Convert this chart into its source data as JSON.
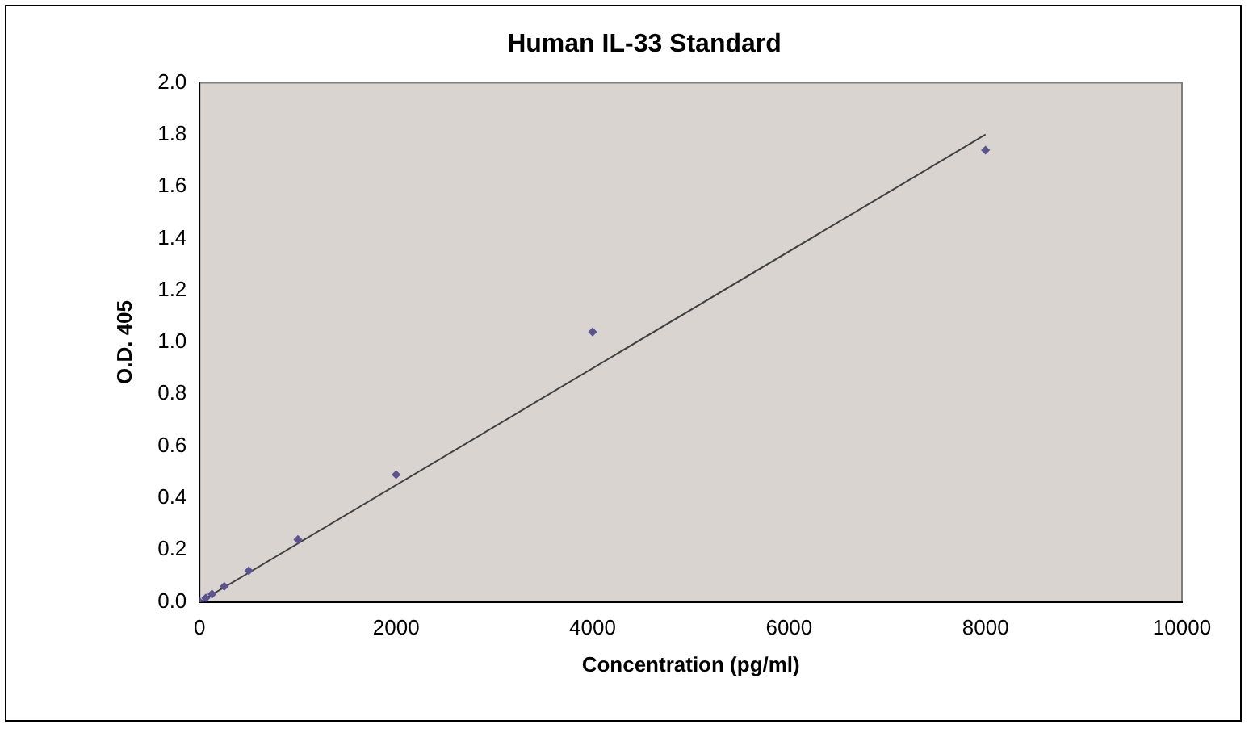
{
  "chart_data": {
    "type": "scatter",
    "title": "Human IL-33 Standard",
    "xlabel": "Concentration (pg/ml)",
    "ylabel": "O.D. 405",
    "x": [
      0,
      62.5,
      125,
      250,
      500,
      1000,
      2000,
      4000,
      8000
    ],
    "series": [
      {
        "color": "#5b5290",
        "marker": "diamond",
        "values": [
          0,
          0.015,
          0.03,
          0.06,
          0.12,
          0.24,
          0.49,
          1.04,
          1.74
        ]
      },
      {
        "type": "line",
        "color": "#404040",
        "x": [
          0,
          8000
        ],
        "values": [
          0,
          1.8
        ],
        "marker": "none"
      }
    ],
    "xlim": [
      0,
      10000
    ],
    "xticks": [
      0,
      2000,
      4000,
      6000,
      8000,
      10000
    ],
    "ylim": [
      0,
      2
    ],
    "yticks": [
      {
        "value": 0,
        "label": "0.0"
      },
      {
        "value": 0.2,
        "label": "0.2"
      },
      {
        "value": 0.4,
        "label": "0.4"
      },
      {
        "value": 0.6,
        "label": "0.6"
      },
      {
        "value": 0.8,
        "label": "0.8"
      },
      {
        "value": 1,
        "label": "1.0"
      },
      {
        "value": 1.2,
        "label": "1.2"
      },
      {
        "value": 1.4,
        "label": "1.4"
      },
      {
        "value": 1.6,
        "label": "1.6"
      },
      {
        "value": 1.8,
        "label": "1.8"
      },
      {
        "value": 2,
        "label": "2.0"
      }
    ],
    "grid": false,
    "legend": false
  }
}
